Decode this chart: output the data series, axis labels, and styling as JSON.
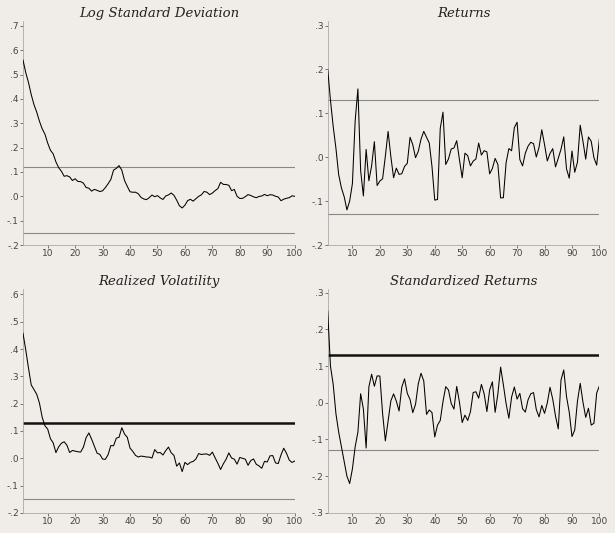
{
  "titles": [
    "Log Standard Deviation",
    "Returns",
    "Realized Volatility",
    "Standardized Returns"
  ],
  "title_fontsize": 9.5,
  "background_color": "#f0ede8",
  "line_color": "#000000",
  "xlim": [
    1,
    100
  ],
  "xticks": [
    10,
    20,
    30,
    40,
    50,
    60,
    70,
    80,
    90,
    100
  ],
  "panels": [
    {
      "ylim": [
        -0.2,
        0.72
      ],
      "yticks": [
        -0.2,
        -0.1,
        0.0,
        0.1,
        0.2,
        0.3,
        0.4,
        0.5,
        0.6,
        0.7
      ],
      "ytick_labels": [
        "-.2",
        "-.1",
        ".0",
        ".1",
        ".2",
        ".3",
        ".4",
        ".5",
        ".6",
        ".7"
      ],
      "conf_upper": 0.12,
      "conf_lower": -0.15,
      "conf_upper_color": "#888888",
      "conf_lower_color": "#888888",
      "conf_upper_lw": 0.8,
      "conf_lower_lw": 0.8
    },
    {
      "ylim": [
        -0.2,
        0.31
      ],
      "yticks": [
        -0.2,
        -0.1,
        0.0,
        0.1,
        0.2,
        0.3
      ],
      "ytick_labels": [
        "-.2",
        "-.1",
        ".0",
        ".1",
        ".2",
        ".3"
      ],
      "conf_upper": 0.13,
      "conf_lower": -0.13,
      "conf_upper_color": "#888888",
      "conf_lower_color": "#888888",
      "conf_upper_lw": 0.8,
      "conf_lower_lw": 0.8
    },
    {
      "ylim": [
        -0.2,
        0.62
      ],
      "yticks": [
        -0.2,
        -0.1,
        0.0,
        0.1,
        0.2,
        0.3,
        0.4,
        0.5,
        0.6
      ],
      "ytick_labels": [
        "-.2",
        "-.1",
        ".0",
        ".1",
        ".2",
        ".3",
        ".4",
        ".5",
        ".6"
      ],
      "conf_upper": 0.13,
      "conf_lower": -0.15,
      "conf_upper_color": "#111111",
      "conf_lower_color": "#888888",
      "conf_upper_lw": 1.8,
      "conf_lower_lw": 0.8
    },
    {
      "ylim": [
        -0.3,
        0.31
      ],
      "yticks": [
        -0.3,
        -0.2,
        -0.1,
        0.0,
        0.1,
        0.2,
        0.3
      ],
      "ytick_labels": [
        "-.3",
        "-.2",
        "-.1",
        ".0",
        ".1",
        ".2",
        ".3"
      ],
      "conf_upper": 0.13,
      "conf_lower": -0.13,
      "conf_upper_color": "#111111",
      "conf_lower_color": "#888888",
      "conf_upper_lw": 1.8,
      "conf_lower_lw": 0.8
    }
  ]
}
